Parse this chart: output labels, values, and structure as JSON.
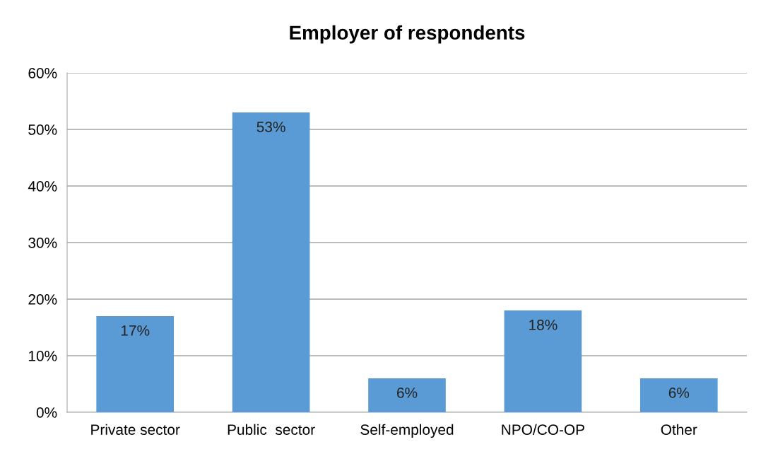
{
  "chart_data": {
    "type": "bar",
    "title": "Employer of respondents",
    "categories": [
      "Private sector",
      "Public  sector",
      "Self-employed",
      "NPO/CO-OP",
      "Other"
    ],
    "values": [
      17,
      53,
      6,
      18,
      6
    ],
    "value_labels": [
      "17%",
      "53%",
      "6%",
      "18%",
      "6%"
    ],
    "color": "#5b9bd5",
    "ylim": [
      0,
      60
    ],
    "yticks": [
      {
        "value": 0,
        "label": "0%"
      },
      {
        "value": 10,
        "label": "10%"
      },
      {
        "value": 20,
        "label": "20%"
      },
      {
        "value": 30,
        "label": "30%"
      },
      {
        "value": 40,
        "label": "40%"
      },
      {
        "value": 50,
        "label": "50%"
      },
      {
        "value": 60,
        "label": "60%"
      }
    ],
    "grid": "y"
  }
}
